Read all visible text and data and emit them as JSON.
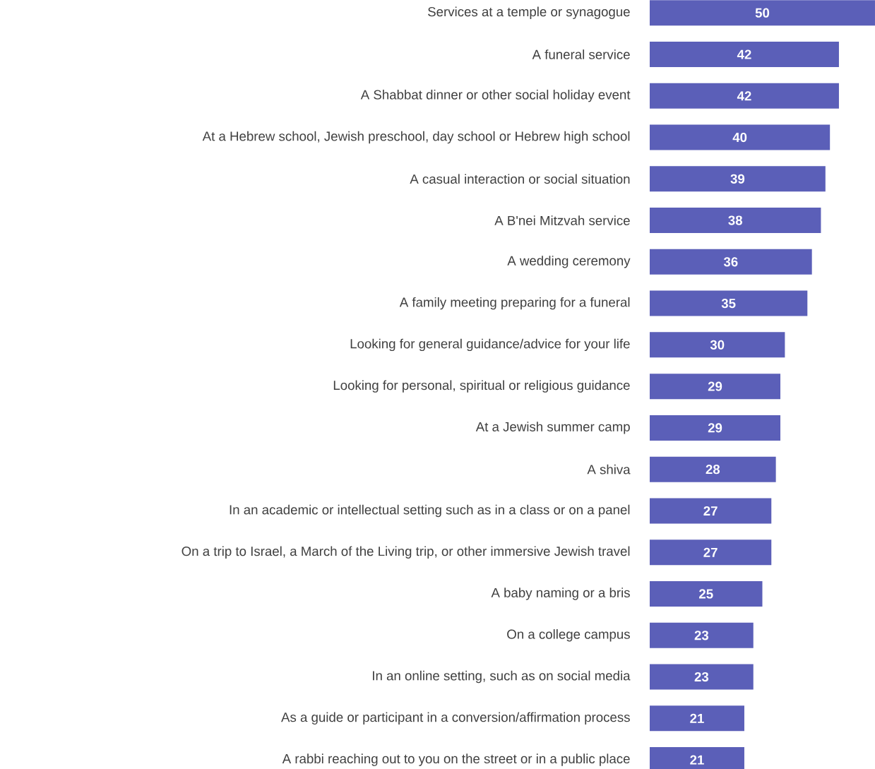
{
  "chart_data": {
    "type": "bar",
    "orientation": "horizontal",
    "data_labels": true,
    "color": "#5b5fb8",
    "categories": [
      "Services at a temple or synagogue",
      "A funeral service",
      "A Shabbat dinner or other social holiday event",
      "At a Hebrew school, Jewish preschool, day school or Hebrew high school",
      "A casual interaction or social situation",
      "A B'nei Mitzvah service",
      "A wedding ceremony",
      "A family meeting preparing for a funeral",
      "Looking for general guidance/advice for your life",
      "Looking for personal, spiritual or religious guidance",
      "At a Jewish summer camp",
      "A shiva",
      "In an academic or intellectual setting such as in a class or on a panel",
      "On a trip to Israel, a March of the Living trip, or other immersive Jewish travel",
      "A baby naming or a bris",
      "On a college campus",
      "In an online setting, such as on social media",
      "As a guide or participant in a conversion/affirmation process",
      "A rabbi reaching out to you on the street or in a public place"
    ],
    "values": [
      50,
      42,
      42,
      40,
      39,
      38,
      36,
      35,
      30,
      29,
      29,
      28,
      27,
      27,
      25,
      23,
      23,
      21,
      21
    ]
  }
}
